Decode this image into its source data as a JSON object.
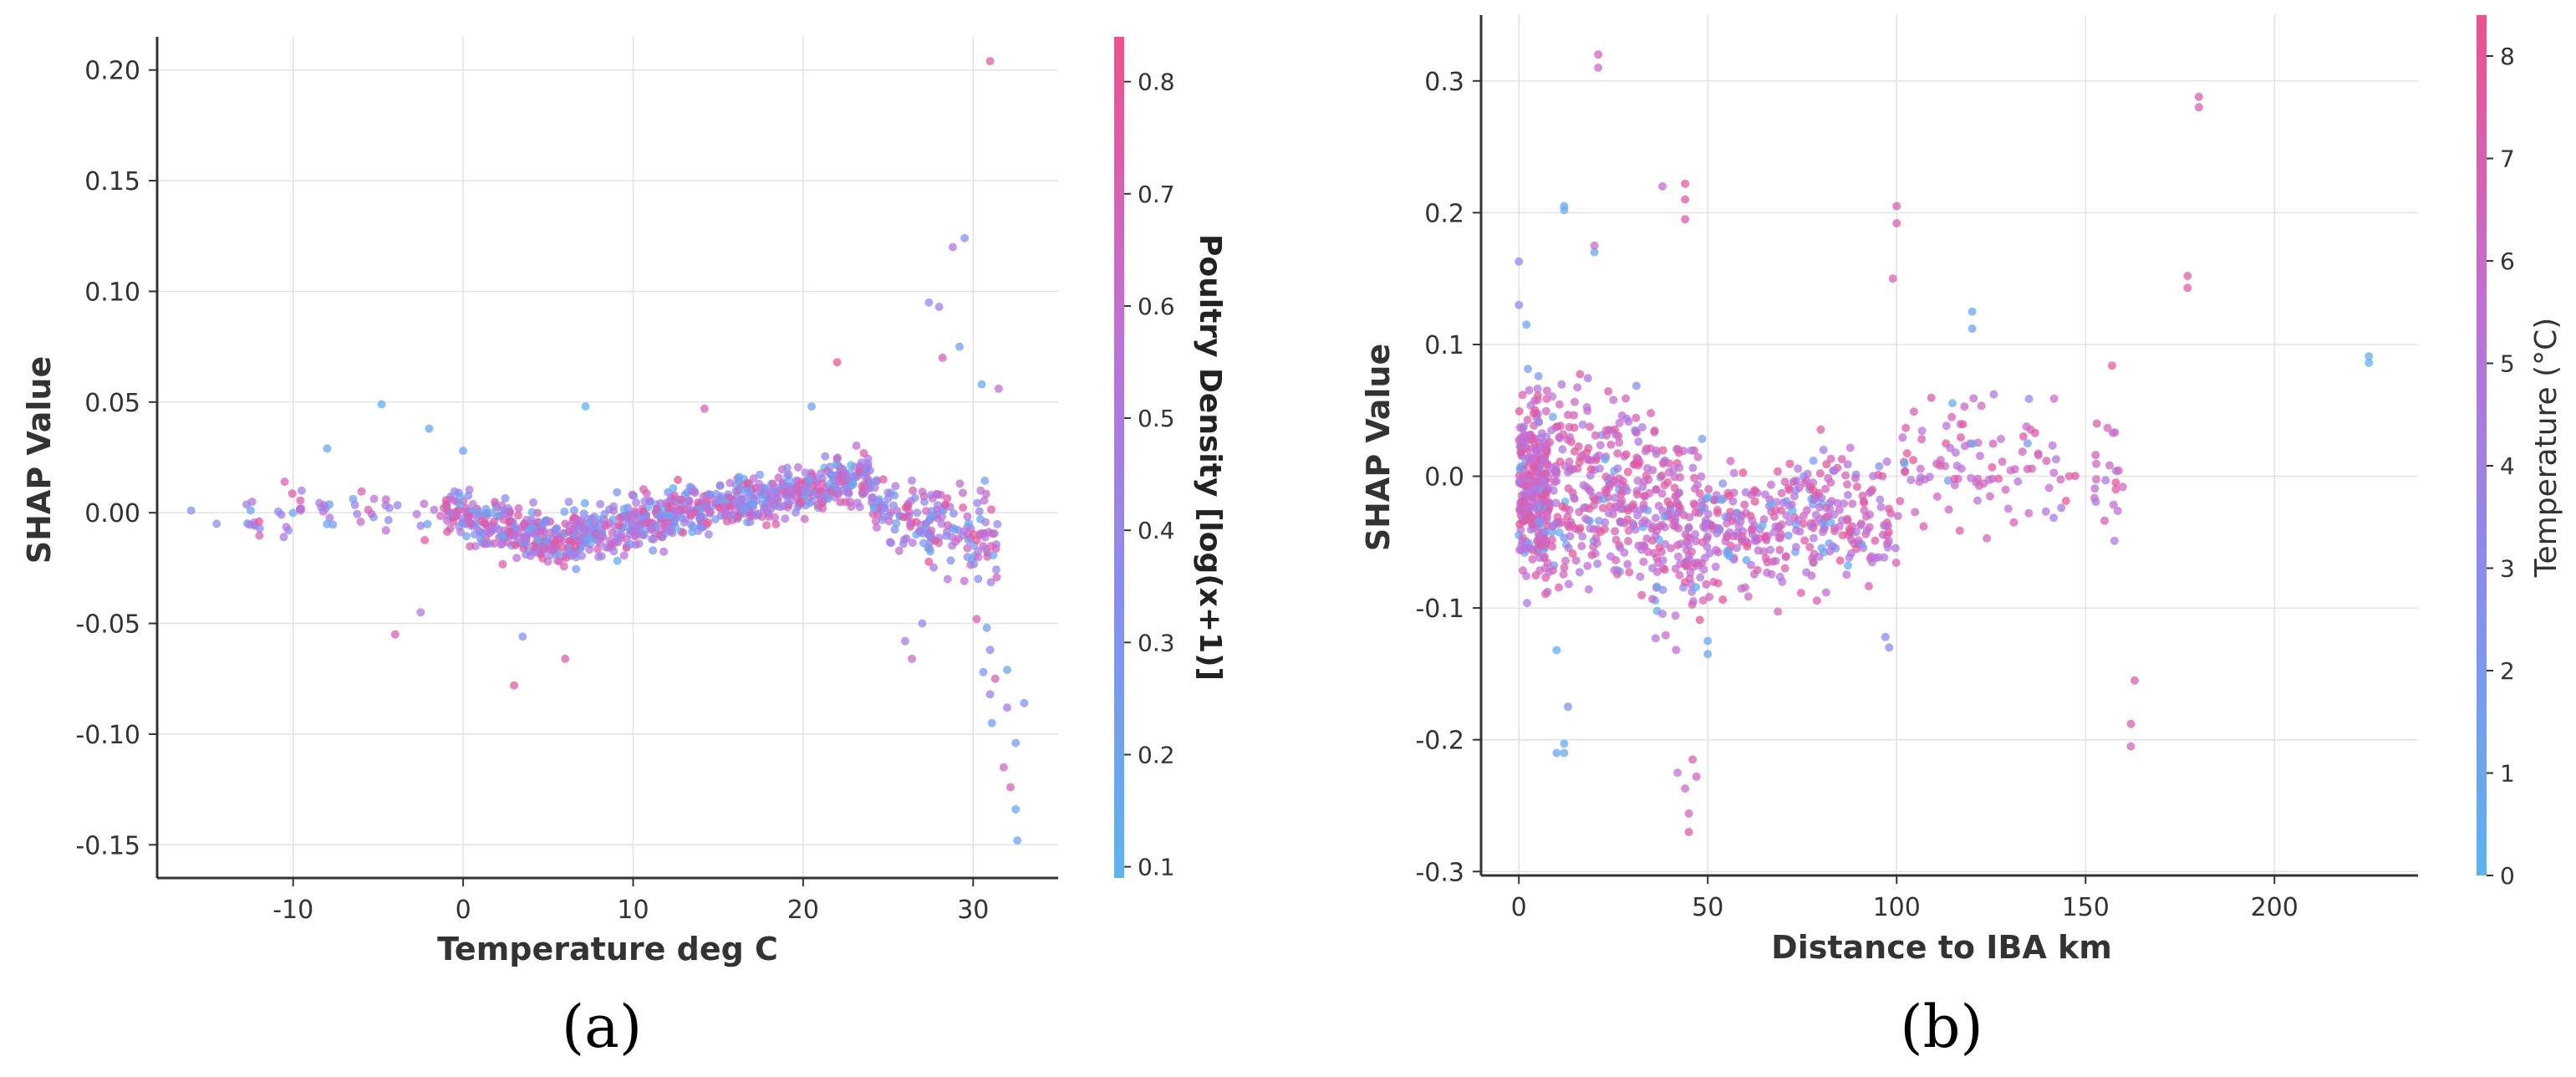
{
  "chart_data": [
    {
      "type": "scatter",
      "panel_label": "(a)",
      "xlabel": "Temperature deg C",
      "ylabel": "SHAP Value",
      "xlim": [
        -18,
        35
      ],
      "ylim": [
        -0.165,
        0.215
      ],
      "x_ticks": [
        {
          "value": -10,
          "label": "-10"
        },
        {
          "value": 0,
          "label": "0"
        },
        {
          "value": 10,
          "label": "10"
        },
        {
          "value": 20,
          "label": "20"
        },
        {
          "value": 30,
          "label": "30"
        }
      ],
      "y_ticks": [
        {
          "value": 0.2,
          "label": "0.20"
        },
        {
          "value": 0.15,
          "label": "0.15"
        },
        {
          "value": 0.1,
          "label": "0.10"
        },
        {
          "value": 0.05,
          "label": "0.05"
        },
        {
          "value": 0.0,
          "label": "0.00"
        },
        {
          "value": -0.05,
          "label": "-0.05"
        },
        {
          "value": -0.1,
          "label": "-0.10"
        },
        {
          "value": -0.15,
          "label": "-0.15"
        }
      ],
      "colorbar": {
        "label": "Poultry Density [log(x+1)]",
        "range": [
          0.09,
          0.84
        ],
        "ticks": [
          {
            "value": 0.8,
            "label": "0.8"
          },
          {
            "value": 0.7,
            "label": "0.7"
          },
          {
            "value": 0.6,
            "label": "0.6"
          },
          {
            "value": 0.5,
            "label": "0.5"
          },
          {
            "value": 0.4,
            "label": "0.4"
          },
          {
            "value": 0.3,
            "label": "0.3"
          },
          {
            "value": 0.2,
            "label": "0.2"
          },
          {
            "value": 0.1,
            "label": "0.1"
          }
        ],
        "colormap": [
          "#5ab4f0",
          "#8a8cf0",
          "#c070d8",
          "#f0508c"
        ]
      },
      "outliers": [
        [
          31.0,
          0.204,
          0.75
        ],
        [
          29.5,
          0.124,
          0.3
        ],
        [
          28.8,
          0.12,
          0.55
        ],
        [
          28.0,
          0.093,
          0.45
        ],
        [
          27.4,
          0.095,
          0.35
        ],
        [
          28.2,
          0.07,
          0.7
        ],
        [
          29.2,
          0.075,
          0.2
        ],
        [
          30.5,
          0.058,
          0.15
        ],
        [
          31.5,
          0.056,
          0.6
        ],
        [
          22.0,
          0.068,
          0.8
        ],
        [
          -4.8,
          0.049,
          0.1
        ],
        [
          7.2,
          0.048,
          0.1
        ],
        [
          14.2,
          0.047,
          0.7
        ],
        [
          20.5,
          0.048,
          0.2
        ],
        [
          -8.0,
          0.029,
          0.15
        ],
        [
          0.0,
          0.028,
          0.2
        ],
        [
          -2.0,
          0.038,
          0.15
        ],
        [
          -16.0,
          0.001,
          0.3
        ],
        [
          -14.5,
          -0.005,
          0.35
        ],
        [
          -12.5,
          0.001,
          0.2
        ],
        [
          -12.0,
          -0.004,
          0.8
        ],
        [
          -10.5,
          0.014,
          0.7
        ],
        [
          -9.5,
          0.01,
          0.45
        ],
        [
          -4.0,
          -0.055,
          0.7
        ],
        [
          3.0,
          -0.078,
          0.75
        ],
        [
          6.0,
          -0.066,
          0.7
        ],
        [
          -2.5,
          -0.045,
          0.5
        ],
        [
          3.5,
          -0.056,
          0.3
        ],
        [
          26.0,
          -0.058,
          0.45
        ],
        [
          26.4,
          -0.066,
          0.65
        ],
        [
          27.0,
          -0.05,
          0.35
        ],
        [
          30.2,
          -0.048,
          0.7
        ],
        [
          30.8,
          -0.052,
          0.2
        ],
        [
          31.0,
          -0.062,
          0.35
        ],
        [
          30.6,
          -0.072,
          0.3
        ],
        [
          31.3,
          -0.075,
          0.7
        ],
        [
          31.0,
          -0.082,
          0.45
        ],
        [
          32.0,
          -0.071,
          0.2
        ],
        [
          33.0,
          -0.086,
          0.3
        ],
        [
          31.1,
          -0.095,
          0.2
        ],
        [
          32.5,
          -0.104,
          0.25
        ],
        [
          31.8,
          -0.115,
          0.65
        ],
        [
          32.2,
          -0.124,
          0.7
        ],
        [
          32.5,
          -0.134,
          0.15
        ],
        [
          32.6,
          -0.148,
          0.2
        ],
        [
          32.0,
          -0.088,
          0.5
        ],
        [
          28.5,
          -0.03,
          0.55
        ]
      ]
    },
    {
      "type": "scatter",
      "panel_label": "(b)",
      "xlabel": "Distance to IBA km",
      "ylabel": "SHAP Value",
      "xlim": [
        -10,
        238
      ],
      "ylim": [
        -0.303,
        0.35
      ],
      "x_ticks": [
        {
          "value": 0,
          "label": "0"
        },
        {
          "value": 50,
          "label": "50"
        },
        {
          "value": 100,
          "label": "100"
        },
        {
          "value": 150,
          "label": "150"
        },
        {
          "value": 200,
          "label": "200"
        }
      ],
      "y_ticks": [
        {
          "value": 0.3,
          "label": "0.3"
        },
        {
          "value": 0.2,
          "label": "0.2"
        },
        {
          "value": 0.1,
          "label": "0.1"
        },
        {
          "value": 0.0,
          "label": "0.0"
        },
        {
          "value": -0.1,
          "label": "-0.1"
        },
        {
          "value": -0.2,
          "label": "-0.2"
        },
        {
          "value": -0.3,
          "label": "-0.3"
        }
      ],
      "colorbar": {
        "label": "Temperature (°C)",
        "range": [
          0,
          8.4
        ],
        "ticks": [
          {
            "value": 8,
            "label": "8"
          },
          {
            "value": 7,
            "label": "7"
          },
          {
            "value": 6,
            "label": "6"
          },
          {
            "value": 5,
            "label": "5"
          },
          {
            "value": 4,
            "label": "4"
          },
          {
            "value": 3,
            "label": "3"
          },
          {
            "value": 2,
            "label": "2"
          },
          {
            "value": 1,
            "label": "1"
          },
          {
            "value": 0,
            "label": "0"
          }
        ],
        "colormap": [
          "#5ab4f0",
          "#8a8cf0",
          "#c070d8",
          "#f0508c"
        ]
      },
      "outliers": [
        [
          21,
          0.32,
          6.5
        ],
        [
          21,
          0.31,
          6.2
        ],
        [
          180,
          0.288,
          7.0
        ],
        [
          180,
          0.28,
          6.8
        ],
        [
          100,
          0.205,
          7.2
        ],
        [
          100,
          0.192,
          7.0
        ],
        [
          99,
          0.15,
          7.0
        ],
        [
          177,
          0.152,
          7.2
        ],
        [
          177,
          0.143,
          7.3
        ],
        [
          225,
          0.091,
          0.5
        ],
        [
          225,
          0.086,
          0.3
        ],
        [
          120,
          0.125,
          1.0
        ],
        [
          120,
          0.112,
          1.5
        ],
        [
          12,
          0.205,
          0.8
        ],
        [
          12,
          0.202,
          0.5
        ],
        [
          38,
          0.22,
          6.0
        ],
        [
          44,
          0.222,
          7.5
        ],
        [
          44,
          0.21,
          7.4
        ],
        [
          44,
          0.195,
          7.2
        ],
        [
          2,
          0.115,
          1.0
        ],
        [
          0,
          0.163,
          3.0
        ],
        [
          0,
          0.13,
          3.3
        ],
        [
          20,
          0.175,
          6.0
        ],
        [
          20,
          0.17,
          1.0
        ],
        [
          163,
          -0.155,
          7.4
        ],
        [
          162,
          -0.188,
          7.2
        ],
        [
          162,
          -0.205,
          6.5
        ],
        [
          12,
          -0.203,
          0.8
        ],
        [
          10,
          -0.21,
          0.7
        ],
        [
          12,
          -0.21,
          1.0
        ],
        [
          10,
          -0.132,
          0.5
        ],
        [
          13,
          -0.175,
          2.5
        ],
        [
          45,
          -0.27,
          7.5
        ],
        [
          45,
          -0.256,
          6.5
        ],
        [
          44,
          -0.237,
          6.0
        ],
        [
          46,
          -0.215,
          7.0
        ],
        [
          47,
          -0.228,
          6.8
        ],
        [
          42,
          -0.225,
          5.5
        ],
        [
          50,
          -0.125,
          0.5
        ],
        [
          50,
          -0.135,
          1.0
        ],
        [
          98,
          -0.13,
          2.5
        ],
        [
          97,
          -0.122,
          3.0
        ],
        [
          131,
          -0.035,
          7.0
        ],
        [
          157,
          0.084,
          7.5
        ],
        [
          158,
          -0.01,
          7.4
        ],
        [
          153,
          0.04,
          7.3
        ]
      ]
    }
  ]
}
